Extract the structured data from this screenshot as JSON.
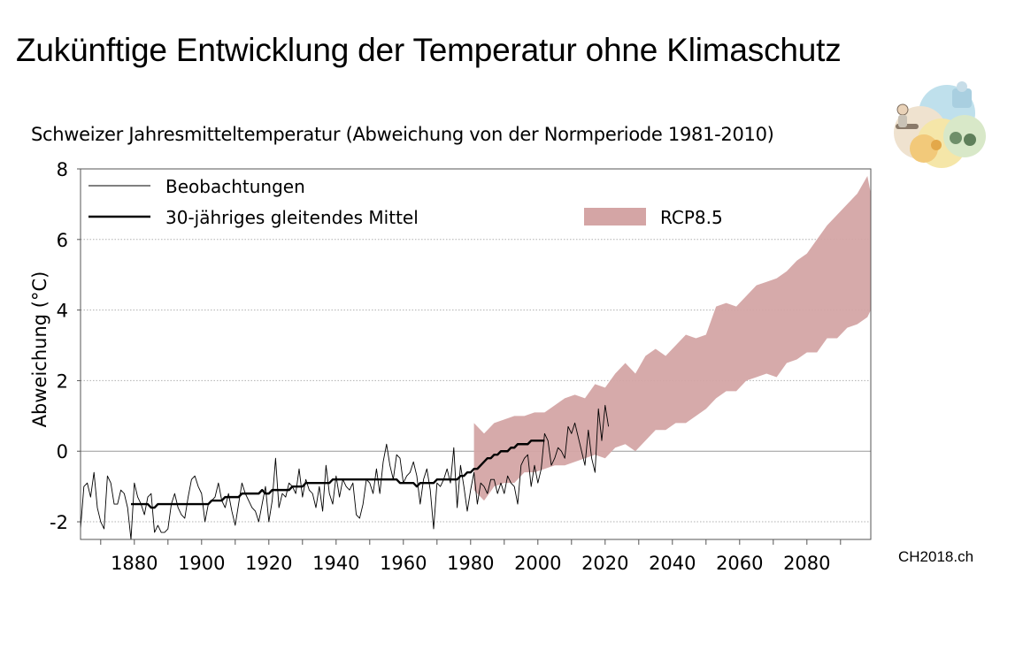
{
  "page": {
    "title": "Zukünftige Entwicklung der Temperatur ohne Klimaschutz",
    "subtitle": "Schweizer Jahresmitteltemperatur (Abweichung von der Normperiode 1981-2010)",
    "source": "CH2018.ch"
  },
  "chart_data": {
    "type": "line",
    "ylabel": "Abweichung (°C)",
    "xlabel": "",
    "xlim": [
      1864,
      2099
    ],
    "ylim": [
      -2.5,
      8
    ],
    "x_ticks": [
      1880,
      1900,
      1920,
      1940,
      1960,
      1980,
      2000,
      2020,
      2040,
      2060,
      2080
    ],
    "y_ticks": [
      -2,
      0,
      2,
      4,
      6,
      8
    ],
    "grid": "horizontal dotted",
    "legend": "top-left",
    "colors": {
      "observations": "#000000",
      "band": "#d4a5a5"
    },
    "series": [
      {
        "name": "Beobachtungen",
        "x_start": 1864,
        "x_end": 2017,
        "values": [
          -2.2,
          -1.0,
          -0.9,
          -1.3,
          -0.6,
          -1.6,
          -2.0,
          -2.2,
          -0.7,
          -0.9,
          -1.5,
          -1.5,
          -1.1,
          -1.2,
          -1.6,
          -2.5,
          -0.9,
          -1.3,
          -1.5,
          -1.8,
          -1.3,
          -1.2,
          -2.3,
          -2.1,
          -2.3,
          -2.3,
          -2.2,
          -1.5,
          -1.2,
          -1.6,
          -1.8,
          -1.9,
          -1.3,
          -0.8,
          -0.7,
          -1.0,
          -1.2,
          -2.0,
          -1.5,
          -1.4,
          -1.3,
          -0.9,
          -1.4,
          -1.6,
          -1.2,
          -1.7,
          -2.1,
          -1.5,
          -0.9,
          -1.2,
          -1.4,
          -1.6,
          -1.7,
          -2.0,
          -1.5,
          -1.0,
          -2.0,
          -1.4,
          -0.2,
          -1.6,
          -1.2,
          -1.3,
          -0.9,
          -1.0,
          -1.2,
          -0.5,
          -1.3,
          -0.8,
          -1.1,
          -1.2,
          -1.6,
          -1.0,
          -1.7,
          -0.4,
          -1.2,
          -1.5,
          -0.7,
          -1.3,
          -0.8,
          -1.0,
          -1.1,
          -0.9,
          -1.8,
          -1.9,
          -1.5,
          -0.8,
          -0.9,
          -1.2,
          -0.5,
          -1.2,
          -0.3,
          0.2,
          -0.4,
          -0.8,
          -0.1,
          -0.2,
          -0.9,
          -0.7,
          -0.6,
          -0.3,
          -0.7,
          -1.5,
          -0.8,
          -0.5,
          -1.1,
          -2.2,
          -0.9,
          -1.0,
          -0.8,
          -0.5,
          -0.9,
          0.1,
          -1.6,
          -0.4,
          -1.0,
          -1.7,
          -1.1,
          -0.6,
          -1.5,
          -0.9,
          -1.0,
          -1.2,
          -0.8,
          -0.8,
          -1.2,
          -0.9,
          -1.2,
          -0.7,
          -0.9,
          -1.0,
          -1.5,
          -0.4,
          -0.2,
          -0.1,
          -1.0,
          -0.4,
          -0.9,
          -0.5,
          0.5,
          0.3,
          -0.4,
          -0.2,
          0.1,
          0.0,
          -0.2,
          0.7,
          0.5,
          0.8,
          0.4,
          0.0,
          -0.4,
          0.6,
          -0.2,
          -0.6,
          1.2,
          0.3,
          1.3,
          0.7
        ]
      },
      {
        "name": "30-jähriges gleitendes Mittel",
        "x_start": 1879,
        "x_end": 2002,
        "values": [
          -1.5,
          -1.5,
          -1.5,
          -1.5,
          -1.5,
          -1.5,
          -1.6,
          -1.6,
          -1.5,
          -1.5,
          -1.5,
          -1.5,
          -1.5,
          -1.5,
          -1.5,
          -1.5,
          -1.5,
          -1.5,
          -1.5,
          -1.5,
          -1.5,
          -1.5,
          -1.5,
          -1.5,
          -1.4,
          -1.4,
          -1.4,
          -1.4,
          -1.3,
          -1.3,
          -1.3,
          -1.3,
          -1.3,
          -1.2,
          -1.2,
          -1.2,
          -1.2,
          -1.2,
          -1.2,
          -1.1,
          -1.2,
          -1.2,
          -1.1,
          -1.1,
          -1.1,
          -1.1,
          -1.1,
          -1.1,
          -1.0,
          -1.0,
          -1.0,
          -1.0,
          -0.9,
          -0.9,
          -0.9,
          -0.9,
          -0.9,
          -0.9,
          -0.9,
          -0.9,
          -0.8,
          -0.8,
          -0.8,
          -0.8,
          -0.8,
          -0.8,
          -0.8,
          -0.8,
          -0.8,
          -0.8,
          -0.8,
          -0.8,
          -0.8,
          -0.8,
          -0.8,
          -0.8,
          -0.8,
          -0.8,
          -0.8,
          -0.8,
          -0.9,
          -0.9,
          -0.9,
          -0.9,
          -0.9,
          -1.0,
          -0.9,
          -0.9,
          -0.9,
          -0.9,
          -0.9,
          -0.8,
          -0.8,
          -0.8,
          -0.8,
          -0.8,
          -0.8,
          -0.8,
          -0.7,
          -0.7,
          -0.6,
          -0.6,
          -0.5,
          -0.5,
          -0.4,
          -0.3,
          -0.2,
          -0.2,
          -0.1,
          -0.1,
          0.0,
          0.0,
          0.0,
          0.1,
          0.1,
          0.2,
          0.2,
          0.2,
          0.2,
          0.3,
          0.3,
          0.3,
          0.3,
          0.3
        ]
      },
      {
        "name": "RCP8.5",
        "kind": "band",
        "x": [
          1981,
          1984,
          1987,
          1990,
          1993,
          1996,
          1999,
          2002,
          2005,
          2008,
          2011,
          2014,
          2017,
          2020,
          2023,
          2026,
          2029,
          2032,
          2035,
          2038,
          2041,
          2044,
          2047,
          2050,
          2053,
          2056,
          2059,
          2062,
          2065,
          2068,
          2071,
          2074,
          2077,
          2080,
          2083,
          2086,
          2089,
          2092,
          2095,
          2098,
          2099
        ],
        "upper": [
          0.8,
          0.5,
          0.8,
          0.9,
          1.0,
          1.0,
          1.1,
          1.1,
          1.3,
          1.5,
          1.6,
          1.5,
          1.9,
          1.8,
          2.2,
          2.5,
          2.2,
          2.7,
          2.9,
          2.7,
          3.0,
          3.3,
          3.2,
          3.3,
          4.1,
          4.2,
          4.1,
          4.4,
          4.7,
          4.8,
          4.9,
          5.1,
          5.4,
          5.6,
          6.0,
          6.4,
          6.7,
          7.0,
          7.3,
          7.8,
          7.3
        ],
        "lower": [
          -1.1,
          -1.4,
          -1.0,
          -0.9,
          -0.9,
          -0.6,
          -0.6,
          -0.5,
          -0.4,
          -0.4,
          -0.3,
          -0.2,
          -0.1,
          -0.2,
          0.1,
          0.2,
          0.0,
          0.3,
          0.6,
          0.6,
          0.8,
          0.8,
          1.0,
          1.2,
          1.5,
          1.7,
          1.7,
          2.0,
          2.1,
          2.2,
          2.1,
          2.5,
          2.6,
          2.8,
          2.8,
          3.2,
          3.2,
          3.5,
          3.6,
          3.8,
          4.0
        ]
      }
    ]
  }
}
